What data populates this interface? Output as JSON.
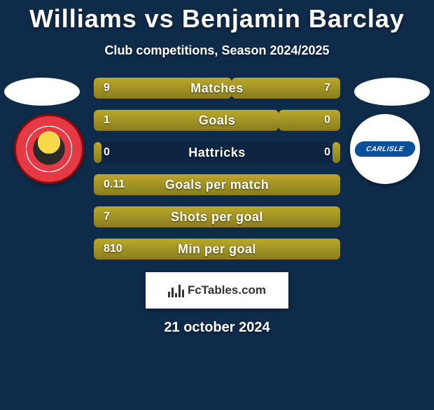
{
  "title": "Williams vs Benjamin Barclay",
  "subtitle": "Club competitions, Season 2024/2025",
  "brand": "FcTables.com",
  "date": "21 october 2024",
  "background_color": "#0f2b4a",
  "text_color": "#ffffff",
  "left_crest": {
    "bg": "#e63946",
    "border": "#8e0b0b",
    "text": ""
  },
  "right_crest": {
    "bg": "#ffffff",
    "inner_bg": "#0a4f9a",
    "text": "CARLISLE"
  },
  "bar_style": {
    "height": 30,
    "radius": 6,
    "gap": 16,
    "track_bg": "rgba(0,0,0,0.12)",
    "left_color": "#b9a82b",
    "right_color": "#b9a82b",
    "label_fontsize": 18,
    "value_fontsize": 16
  },
  "stats": [
    {
      "label": "Matches",
      "left_val": "9",
      "right_val": "7",
      "left_pct": 56,
      "right_pct": 44
    },
    {
      "label": "Goals",
      "left_val": "1",
      "right_val": "0",
      "left_pct": 75,
      "right_pct": 25
    },
    {
      "label": "Hattricks",
      "left_val": "0",
      "right_val": "0",
      "left_pct": 3,
      "right_pct": 3
    },
    {
      "label": "Goals per match",
      "left_val": "0.11",
      "right_val": "",
      "left_pct": 100,
      "right_pct": 0
    },
    {
      "label": "Shots per goal",
      "left_val": "7",
      "right_val": "",
      "left_pct": 100,
      "right_pct": 0
    },
    {
      "label": "Min per goal",
      "left_val": "810",
      "right_val": "",
      "left_pct": 100,
      "right_pct": 0
    }
  ]
}
